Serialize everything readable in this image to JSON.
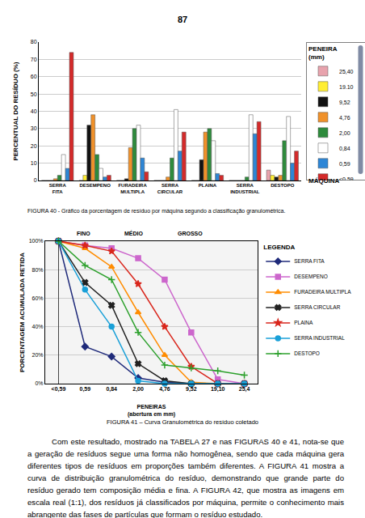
{
  "page_number": "87",
  "chart_data": [
    {
      "type": "bar",
      "title": "FIGURA 40 - Gráfico da porcentagem de resíduo por máquina segundo a classificação granulométrica.",
      "x_label": "MÁQUINA",
      "y_label": "PERCENTUAL DO RESÍDUO (%)",
      "legend_title": "PENEIRA (mm)",
      "legend": "right",
      "grid": true,
      "categories": [
        "SERRA FITA",
        "DESEMPENO",
        "FURADEIRA MULTIPLA",
        "SERRA CIRCULAR",
        "PLAINA",
        "SERRA INDUSTRIAL",
        "DESTOPO"
      ],
      "ylim": [
        0,
        80
      ],
      "yticks": [
        0,
        10,
        20,
        30,
        40,
        50,
        60,
        70,
        80
      ],
      "series": [
        {
          "name": "25,40",
          "color": "#e8a3ad",
          "values": [
            0,
            0,
            0,
            0,
            0,
            0,
            6
          ]
        },
        {
          "name": "19.10",
          "color": "#ffee33",
          "values": [
            0,
            3,
            0,
            0,
            0,
            0,
            3
          ]
        },
        {
          "name": "9,52",
          "color": "#111111",
          "values": [
            0,
            32,
            1,
            0,
            12,
            0,
            2
          ]
        },
        {
          "name": "4,76",
          "color": "#f0912a",
          "values": [
            1,
            38,
            19,
            2,
            28,
            0,
            3
          ]
        },
        {
          "name": "2,00",
          "color": "#2e8b3c",
          "values": [
            3,
            15,
            30,
            13,
            30,
            2,
            23
          ]
        },
        {
          "name": "0,84",
          "color": "#ffffff",
          "values": [
            15,
            7,
            32,
            41,
            23,
            38,
            37
          ]
        },
        {
          "name": "0,59",
          "color": "#2d86d6",
          "values": [
            7,
            2,
            13,
            17,
            4,
            27,
            10
          ]
        },
        {
          "name": "<0,59",
          "color": "#d42a2a",
          "values": [
            74,
            3,
            5,
            28,
            3,
            34,
            17
          ]
        }
      ]
    },
    {
      "type": "line",
      "title": "FIGURA 41 – Curva Granulométrica do resíduo coletado",
      "x_label": "PENEIRAS (abertura em mm)",
      "y_label": "PORCENTAGEM ACUMULADA RETIDA",
      "legend_title": "LEGENDA",
      "legend": "right",
      "grid": true,
      "annotations": [
        "FINO",
        "MÉDIO",
        "GROSSO"
      ],
      "categories": [
        "<0,59",
        "0,59",
        "0,84",
        "2,00",
        "4,76",
        "9,52",
        "19,10",
        "25,4"
      ],
      "ylim": [
        0,
        100
      ],
      "yticks": [
        {
          "value": 0,
          "label": "0%"
        },
        {
          "value": 20,
          "label": "20%"
        },
        {
          "value": 40,
          "label": "40%"
        },
        {
          "value": 60,
          "label": "60%"
        },
        {
          "value": 80,
          "label": "80%"
        },
        {
          "value": 100,
          "label": "100%"
        }
      ],
      "series": [
        {
          "name": "SERRA FITA",
          "color": "#1f2a7a",
          "marker": "diamond",
          "values": [
            100,
            26,
            19,
            4,
            1,
            0,
            0,
            0
          ]
        },
        {
          "name": "DESEMPENO",
          "color": "#cc66cc",
          "marker": "square",
          "values": [
            100,
            97,
            95,
            88,
            73,
            36,
            3,
            0
          ]
        },
        {
          "name": "FURADEIRA MULTIPLA",
          "color": "#ff8c00",
          "marker": "triangle-up",
          "values": [
            100,
            95,
            82,
            50,
            20,
            1,
            0,
            0
          ]
        },
        {
          "name": "SERRA CIRCULAR",
          "color": "#222222",
          "marker": "x",
          "values": [
            100,
            71,
            55,
            14,
            2,
            0,
            0,
            0
          ]
        },
        {
          "name": "PLAINA",
          "color": "#d9261c",
          "marker": "star",
          "values": [
            100,
            97,
            93,
            70,
            40,
            12,
            0,
            0
          ]
        },
        {
          "name": "SERRA INDUSTRIAL",
          "color": "#1aa0d8",
          "marker": "circle",
          "values": [
            100,
            66,
            40,
            2,
            0,
            0,
            0,
            0
          ]
        },
        {
          "name": "DESTOPO",
          "color": "#2ca02c",
          "marker": "cross-thin",
          "values": [
            100,
            83,
            73,
            36,
            13,
            11,
            9,
            6
          ]
        }
      ]
    }
  ],
  "body": "Com este resultado, mostrado na TABELA 27 e nas FIGURAS 40 e 41, nota-se que a geração de resíduos segue uma forma não homogênea, sendo que cada máquina gera diferentes tipos de resíduos em proporções também diferentes. A FIGURA 41 mostra a curva de distribuição granulométrica do resíduo, demonstrando que grande parte do resíduo gerado tem composição média e fina. A FIGURA 42, que mostra as imagens em escala real (1:1), dos resíduos já classificados por máquina, permite o conhecimento mais abrangente das fases de partículas que formam o resíduo estudado."
}
